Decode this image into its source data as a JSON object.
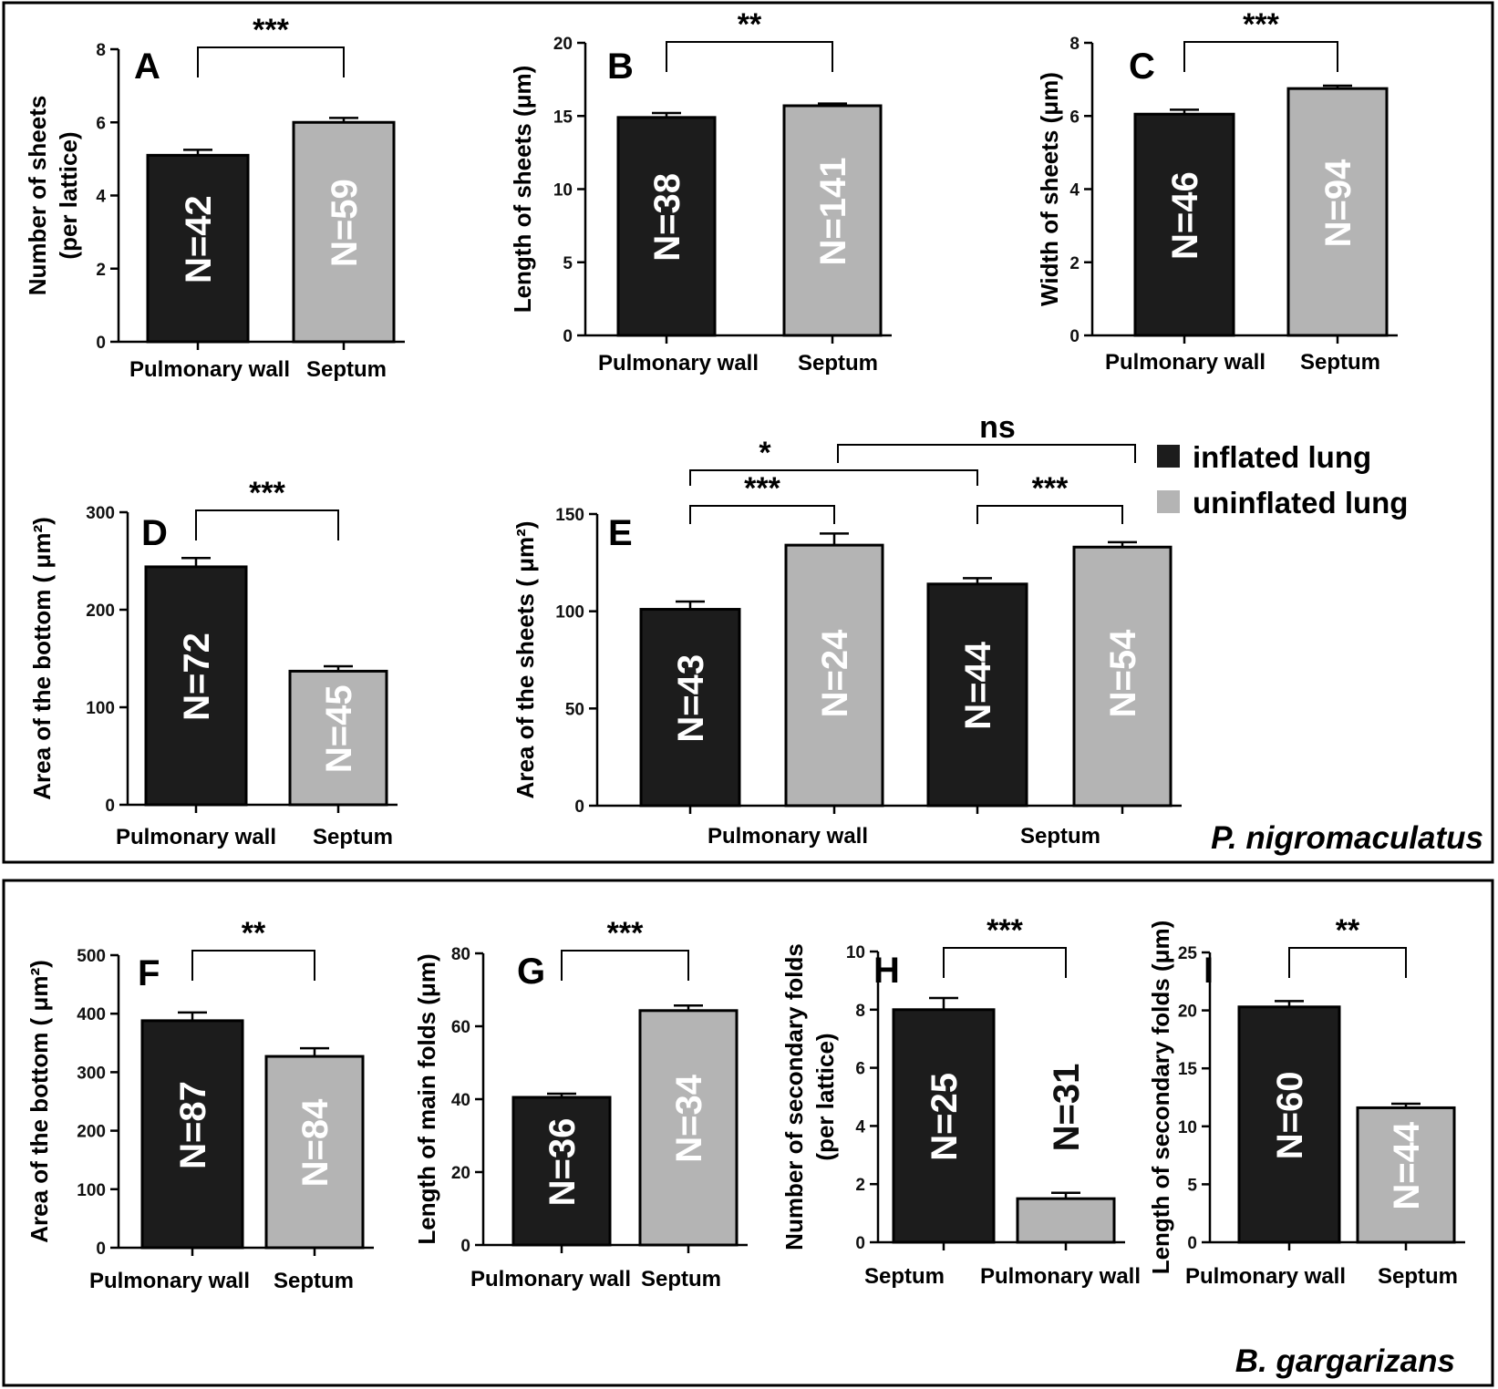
{
  "colors": {
    "inflated": "#1c1c1c",
    "uninflated": "#b4b4b4",
    "frame": "#000000"
  },
  "legend": [
    {
      "label": "inflated lung",
      "color": "#1c1c1c"
    },
    {
      "label": "uninflated lung",
      "color": "#b4b4b4"
    }
  ],
  "species": [
    "P. nigromaculatus",
    "B. gargarizans"
  ],
  "chart_data": [
    {
      "panel": "A",
      "type": "bar",
      "species": "P. nigromaculatus",
      "ylabel": [
        "Number of sheets",
        "(per lattice)"
      ],
      "ylim": [
        0,
        8
      ],
      "yticks": [
        0,
        2,
        4,
        6,
        8
      ],
      "categories": [
        "Pulmonary  wall",
        "Septum"
      ],
      "values": [
        5.1,
        6.0
      ],
      "errors": [
        0.15,
        0.12
      ],
      "n_labels": [
        "N=42",
        "N=59"
      ],
      "significance": "***"
    },
    {
      "panel": "B",
      "type": "bar",
      "species": "P. nigromaculatus",
      "ylabel": [
        "Length of sheets (μm)"
      ],
      "ylim": [
        0,
        20
      ],
      "yticks": [
        0,
        5,
        10,
        15,
        20
      ],
      "categories": [
        "Pulmonary  wall",
        "Septum"
      ],
      "values": [
        14.9,
        15.7
      ],
      "errors": [
        0.3,
        0.15
      ],
      "n_labels": [
        "N=38",
        "N=141"
      ],
      "significance": "**"
    },
    {
      "panel": "C",
      "type": "bar",
      "species": "P. nigromaculatus",
      "ylabel": [
        "Width of sheets (μm)"
      ],
      "ylim": [
        0,
        8
      ],
      "yticks": [
        0,
        2,
        4,
        6,
        8
      ],
      "categories": [
        "Pulmonary  wall",
        "Septum"
      ],
      "values": [
        6.05,
        6.75
      ],
      "errors": [
        0.12,
        0.08
      ],
      "n_labels": [
        "N=46",
        "N=94"
      ],
      "significance": "***"
    },
    {
      "panel": "D",
      "type": "bar",
      "species": "P. nigromaculatus",
      "ylabel": [
        "Area of the bottom ( μm²)"
      ],
      "ylim": [
        0,
        300
      ],
      "yticks": [
        0,
        100,
        200,
        300
      ],
      "categories": [
        "Pulmonary  wall",
        "Septum"
      ],
      "values": [
        244,
        137
      ],
      "errors": [
        9,
        5
      ],
      "n_labels": [
        "N=72",
        "N=45"
      ],
      "significance": "***"
    },
    {
      "panel": "E",
      "type": "bar",
      "species": "P. nigromaculatus",
      "ylabel": [
        "Area of the sheets ( μm²)"
      ],
      "ylim": [
        0,
        150
      ],
      "yticks": [
        0,
        50,
        100,
        150
      ],
      "categories": [
        "Pulmonary  wall",
        "Septum"
      ],
      "series": [
        {
          "name": "inflated lung",
          "values": [
            101,
            114
          ],
          "errors": [
            4,
            3
          ],
          "n_labels": [
            "N=43",
            "N=44"
          ]
        },
        {
          "name": "uninflated lung",
          "values": [
            134,
            133
          ],
          "errors": [
            6,
            2.5
          ],
          "n_labels": [
            "N=24",
            "N=54"
          ]
        }
      ],
      "comparisons": [
        {
          "label": "***",
          "between": "Pulmonary wall inflated vs uninflated"
        },
        {
          "label": "***",
          "between": "Septum inflated vs uninflated"
        },
        {
          "label": "*",
          "between": "inflated Pulmonary wall vs Septum"
        },
        {
          "label": "ns",
          "between": "uninflated Pulmonary wall vs Septum"
        }
      ]
    },
    {
      "panel": "F",
      "type": "bar",
      "species": "B. gargarizans",
      "ylabel": [
        "Area of the bottom ( μm²)"
      ],
      "ylim": [
        0,
        500
      ],
      "yticks": [
        0,
        100,
        200,
        300,
        400,
        500
      ],
      "categories": [
        "Pulmonary  wall",
        "Septum"
      ],
      "values": [
        388,
        327
      ],
      "errors": [
        14,
        14
      ],
      "n_labels": [
        "N=87",
        "N=84"
      ],
      "significance": "**"
    },
    {
      "panel": "G",
      "type": "bar",
      "species": "B. gargarizans",
      "ylabel": [
        "Length of  main folds (μm)"
      ],
      "ylim": [
        0,
        80
      ],
      "yticks": [
        0,
        20,
        40,
        60,
        80
      ],
      "categories": [
        "Pulmonary  wall",
        "Septum"
      ],
      "values": [
        40.5,
        64.3
      ],
      "errors": [
        1,
        1.4
      ],
      "n_labels": [
        "N=36",
        "N=34"
      ],
      "significance": "***"
    },
    {
      "panel": "H",
      "type": "bar",
      "species": "B. gargarizans",
      "ylabel": [
        "Number of secondary folds",
        "(per lattice)"
      ],
      "ylim": [
        0,
        10
      ],
      "yticks": [
        0,
        2,
        4,
        6,
        8,
        10
      ],
      "categories": [
        "Septum",
        "Pulmonary  wall"
      ],
      "values": [
        8.0,
        1.5
      ],
      "errors": [
        0.4,
        0.2
      ],
      "n_labels": [
        "N=25",
        "N=31"
      ],
      "significance": "***"
    },
    {
      "panel": "I",
      "type": "bar",
      "species": "B. gargarizans",
      "ylabel": [
        "Length of secondary folds (μm)"
      ],
      "ylim": [
        0,
        25
      ],
      "yticks": [
        0,
        5,
        10,
        15,
        20,
        25
      ],
      "categories": [
        "Pulmonary  wall",
        "Septum"
      ],
      "values": [
        20.3,
        11.6
      ],
      "errors": [
        0.5,
        0.35
      ],
      "n_labels": [
        "N=60",
        "N=44"
      ],
      "significance": "**"
    }
  ]
}
